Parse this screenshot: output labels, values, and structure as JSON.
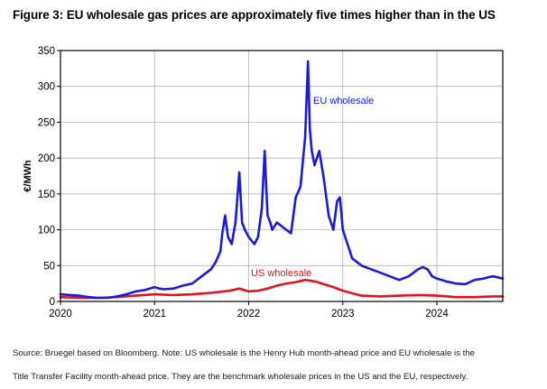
{
  "title": "Figure 3: EU wholesale gas prices are approximately five times higher than in the US",
  "source_line1": "Source: Bruegel based on Bloomberg. Note: US wholesale is the Henry Hub month-ahead price and EU wholesale is the",
  "source_line2": "Title Transfer Facility month-ahead price. They are the benchmark wholesale prices in the US and the EU, respectively.",
  "chart_data": {
    "type": "line",
    "title": "Figure 3: EU wholesale gas prices are approximately five times higher than in the US",
    "xlabel": "",
    "ylabel": "€/MWh",
    "xlim": [
      2020.0,
      2024.7
    ],
    "ylim": [
      0,
      350
    ],
    "grid": true,
    "xticks": [
      2020,
      2021,
      2022,
      2023,
      2024
    ],
    "xtick_labels": [
      "2020",
      "2021",
      "2022",
      "2023",
      "2024"
    ],
    "yticks": [
      0,
      50,
      100,
      150,
      200,
      250,
      300,
      350
    ],
    "ytick_labels": [
      "0",
      "50",
      "100",
      "150",
      "200",
      "250",
      "300",
      "350"
    ],
    "series": [
      {
        "name": "EU wholesale",
        "color": "#1a1adc",
        "x": [
          2020.0,
          2020.1,
          2020.2,
          2020.3,
          2020.4,
          2020.5,
          2020.6,
          2020.7,
          2020.8,
          2020.9,
          2021.0,
          2021.05,
          2021.1,
          2021.2,
          2021.3,
          2021.4,
          2021.5,
          2021.55,
          2021.6,
          2021.65,
          2021.7,
          2021.72,
          2021.75,
          2021.78,
          2021.82,
          2021.86,
          2021.9,
          2021.93,
          2021.96,
          2022.0,
          2022.03,
          2022.06,
          2022.1,
          2022.14,
          2022.17,
          2022.2,
          2022.23,
          2022.25,
          2022.3,
          2022.35,
          2022.4,
          2022.45,
          2022.5,
          2022.55,
          2022.6,
          2022.63,
          2022.65,
          2022.67,
          2022.7,
          2022.75,
          2022.8,
          2022.85,
          2022.9,
          2022.94,
          2022.97,
          2023.0,
          2023.05,
          2023.1,
          2023.2,
          2023.3,
          2023.4,
          2023.5,
          2023.6,
          2023.7,
          2023.8,
          2023.85,
          2023.9,
          2023.95,
          2024.0,
          2024.1,
          2024.2,
          2024.3,
          2024.4,
          2024.5,
          2024.55,
          2024.6,
          2024.7
        ],
        "values": [
          10,
          9,
          8,
          6,
          5,
          5,
          7,
          10,
          14,
          16,
          20,
          18,
          17,
          18,
          22,
          25,
          35,
          40,
          45,
          55,
          70,
          95,
          120,
          90,
          80,
          110,
          180,
          110,
          100,
          90,
          85,
          80,
          90,
          130,
          210,
          120,
          110,
          100,
          110,
          105,
          100,
          95,
          145,
          160,
          230,
          335,
          240,
          210,
          190,
          210,
          170,
          120,
          100,
          140,
          145,
          100,
          80,
          60,
          50,
          45,
          40,
          35,
          30,
          35,
          45,
          48,
          45,
          35,
          32,
          28,
          25,
          24,
          30,
          32,
          34,
          35,
          32
        ]
      },
      {
        "name": "US wholesale",
        "color": "#e0141e",
        "x": [
          2020.0,
          2020.2,
          2020.4,
          2020.6,
          2020.8,
          2021.0,
          2021.2,
          2021.4,
          2021.6,
          2021.8,
          2021.9,
          2022.0,
          2022.1,
          2022.2,
          2022.3,
          2022.4,
          2022.5,
          2022.6,
          2022.7,
          2022.8,
          2022.9,
          2023.0,
          2023.2,
          2023.4,
          2023.6,
          2023.8,
          2024.0,
          2024.2,
          2024.4,
          2024.6,
          2024.7
        ],
        "values": [
          6,
          5,
          5,
          6,
          8,
          10,
          9,
          10,
          12,
          15,
          18,
          14,
          15,
          18,
          22,
          25,
          27,
          30,
          28,
          24,
          20,
          15,
          8,
          7,
          8,
          9,
          8,
          6,
          6,
          7,
          7
        ]
      }
    ],
    "annotations": [
      {
        "text": "EU wholesale",
        "series": "EU wholesale"
      },
      {
        "text": "US wholesale",
        "series": "US wholesale"
      }
    ]
  }
}
